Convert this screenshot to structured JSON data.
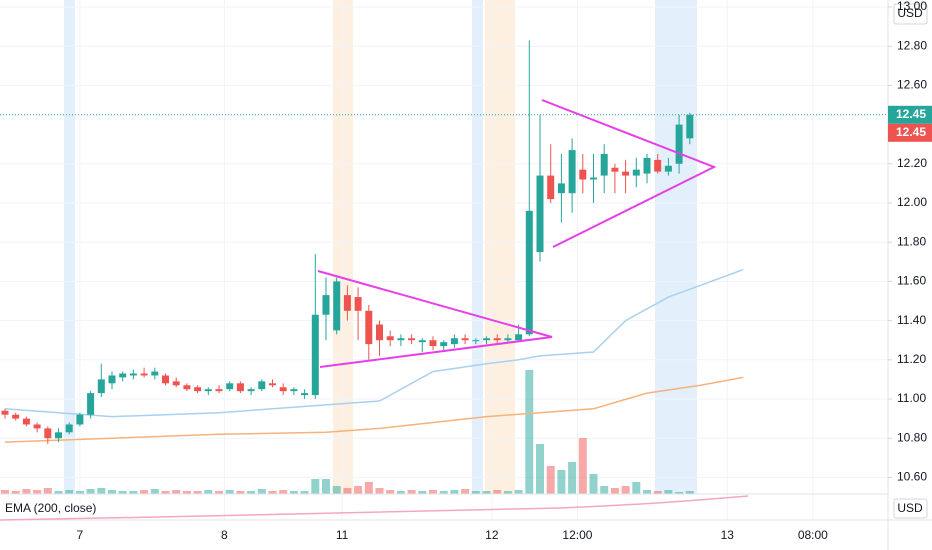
{
  "chart_data": {
    "type": "candlestick",
    "currency": "USD",
    "indicator_label": "EMA (200, close)",
    "up_color": "#26a69a",
    "down_color": "#ef5350",
    "grid": true,
    "ylim": [
      10.4,
      13.05
    ],
    "yticks": [
      {
        "value": 13.0,
        "label": "13.00"
      },
      {
        "value": 12.8,
        "label": "12.80"
      },
      {
        "value": 12.6,
        "label": "12.60"
      },
      {
        "value": 12.2,
        "label": "12.20"
      },
      {
        "value": 12.0,
        "label": "12.00"
      },
      {
        "value": 11.8,
        "label": "11.80"
      },
      {
        "value": 11.6,
        "label": "11.60"
      },
      {
        "value": 11.4,
        "label": "11.40"
      },
      {
        "value": 11.2,
        "label": "11.20"
      },
      {
        "value": 11.0,
        "label": "11.00"
      },
      {
        "value": 10.8,
        "label": "10.80"
      },
      {
        "value": 10.6,
        "label": "10.60"
      }
    ],
    "xticks": [
      {
        "value": 7,
        "label": "7"
      },
      {
        "value": 20.5,
        "label": "8"
      },
      {
        "value": 31.5,
        "label": "11"
      },
      {
        "value": 45.5,
        "label": "12"
      },
      {
        "value": 53.5,
        "label": "12:00"
      },
      {
        "value": 67.5,
        "label": "13"
      },
      {
        "value": 75.5,
        "label": "08:00"
      }
    ],
    "price_labels": [
      {
        "value": 12.45,
        "color": "#26a69a"
      },
      {
        "value": 12.45,
        "color": "#ef5350"
      }
    ],
    "open": [
      10.94,
      10.92,
      10.9,
      10.87,
      10.85,
      10.8,
      10.83,
      10.87,
      10.92,
      11.03,
      11.08,
      11.11,
      11.12,
      11.13,
      11.12,
      11.12,
      11.09,
      11.07,
      11.06,
      11.04,
      11.05,
      11.05,
      11.08,
      11.04,
      11.05,
      11.08,
      11.06,
      11.04,
      11.02,
      11.02,
      11.43,
      11.35,
      11.53,
      11.52,
      11.45,
      11.38,
      11.32,
      11.3,
      11.31,
      11.29,
      11.3,
      11.27,
      11.28,
      11.31,
      11.3,
      11.3,
      11.31,
      11.3,
      11.3,
      11.33,
      11.75,
      12.14,
      12.05,
      12.05,
      12.17,
      12.12,
      12.14,
      12.18,
      12.16,
      12.14,
      12.15,
      12.22,
      12.16,
      12.2,
      12.33
    ],
    "high": [
      10.95,
      10.93,
      10.91,
      10.88,
      10.86,
      10.85,
      10.88,
      10.93,
      11.04,
      11.18,
      11.14,
      11.14,
      11.15,
      11.16,
      11.16,
      11.13,
      11.11,
      11.08,
      11.07,
      11.06,
      11.07,
      11.09,
      11.09,
      11.06,
      11.1,
      11.1,
      11.08,
      11.06,
      11.05,
      11.74,
      11.62,
      11.62,
      11.58,
      11.57,
      11.48,
      11.4,
      11.35,
      11.33,
      11.33,
      11.31,
      11.32,
      11.3,
      11.33,
      11.33,
      11.31,
      11.32,
      11.33,
      11.33,
      11.38,
      12.83,
      12.45,
      12.3,
      12.25,
      12.33,
      12.25,
      12.25,
      12.3,
      12.2,
      12.22,
      12.23,
      12.25,
      12.25,
      12.23,
      12.45,
      12.46
    ],
    "low": [
      10.9,
      10.89,
      10.86,
      10.83,
      10.77,
      10.78,
      10.82,
      10.86,
      10.9,
      11.01,
      11.05,
      11.09,
      11.1,
      11.11,
      11.1,
      11.07,
      11.06,
      11.04,
      11.03,
      11.02,
      11.03,
      11.04,
      11.03,
      11.02,
      11.04,
      11.06,
      11.02,
      11.02,
      11.0,
      11.0,
      11.3,
      11.33,
      11.4,
      11.3,
      11.2,
      11.22,
      11.27,
      11.27,
      11.28,
      11.24,
      11.25,
      11.25,
      11.26,
      11.28,
      11.28,
      11.28,
      11.28,
      11.29,
      11.29,
      11.32,
      11.7,
      12.0,
      11.9,
      11.95,
      12.05,
      12.0,
      12.05,
      12.05,
      12.05,
      12.08,
      12.1,
      12.15,
      12.14,
      12.15,
      12.3
    ],
    "close": [
      10.92,
      10.9,
      10.87,
      10.85,
      10.8,
      10.83,
      10.87,
      10.92,
      11.03,
      11.1,
      11.12,
      11.13,
      11.13,
      11.12,
      11.14,
      11.08,
      11.07,
      11.05,
      11.04,
      11.05,
      11.04,
      11.08,
      11.04,
      11.05,
      11.09,
      11.07,
      11.04,
      11.05,
      11.03,
      11.43,
      11.53,
      11.6,
      11.45,
      11.45,
      11.28,
      11.3,
      11.3,
      11.31,
      11.3,
      11.3,
      11.27,
      11.29,
      11.31,
      11.3,
      11.3,
      11.31,
      11.3,
      11.31,
      11.33,
      11.96,
      12.14,
      12.02,
      12.1,
      12.27,
      12.12,
      12.13,
      12.25,
      12.16,
      12.14,
      12.17,
      12.23,
      12.16,
      12.19,
      12.4,
      12.45
    ],
    "volume": [
      4,
      3,
      5,
      4,
      6,
      3,
      4,
      3,
      5,
      6,
      4,
      3,
      3,
      4,
      5,
      3,
      4,
      3,
      3,
      4,
      3,
      4,
      3,
      3,
      5,
      3,
      4,
      3,
      3,
      15,
      15,
      8,
      6,
      8,
      12,
      6,
      4,
      3,
      4,
      3,
      4,
      3,
      4,
      5,
      3,
      3,
      4,
      3,
      4,
      124,
      50,
      28,
      24,
      32,
      56,
      20,
      8,
      6,
      8,
      12,
      4,
      3,
      4,
      2,
      3
    ],
    "moving_averages": [
      {
        "color": "#a8d0ef",
        "x": [
          0,
          5,
          10,
          15,
          20,
          25,
          30,
          35,
          40,
          45,
          48,
          50,
          55,
          58,
          62,
          65,
          69
        ],
        "values": [
          10.95,
          10.93,
          10.91,
          10.92,
          10.93,
          10.95,
          10.97,
          10.99,
          11.14,
          11.18,
          11.2,
          11.22,
          11.24,
          11.4,
          11.52,
          11.58,
          11.66
        ]
      },
      {
        "color": "#f5b27a",
        "x": [
          0,
          10,
          20,
          30,
          35,
          40,
          45,
          50,
          55,
          60,
          65,
          69
        ],
        "values": [
          10.78,
          10.8,
          10.82,
          10.83,
          10.85,
          10.88,
          10.91,
          10.93,
          10.95,
          11.03,
          11.07,
          11.11
        ]
      }
    ]
  }
}
